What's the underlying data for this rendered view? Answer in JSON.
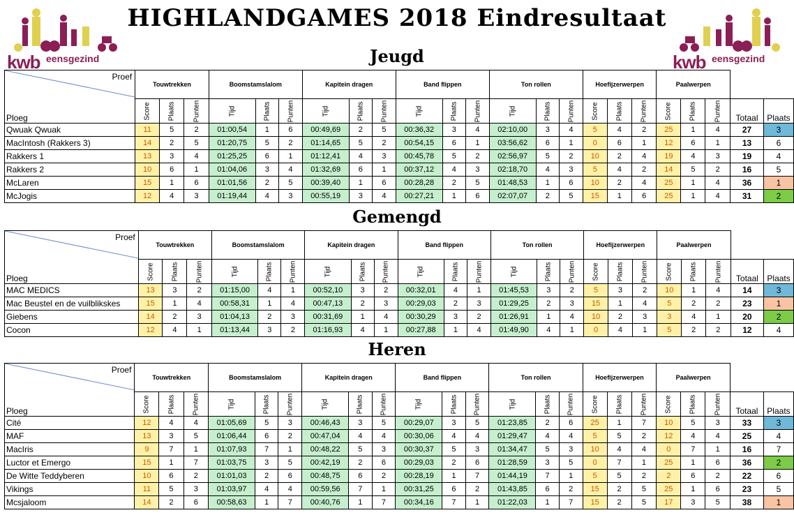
{
  "title": "HIGHLANDGAMES 2018 Eindresultaat",
  "logo": {
    "kwb": "kwb",
    "gezind": "eensgezind"
  },
  "headers": {
    "proef": "Proef",
    "ploeg": "Ploeg",
    "events": [
      "Touwtrekken",
      "Boomstamslalom",
      "Kapitein dragen",
      "Band flippen",
      "Ton rollen",
      "Hoefijzerwerpen",
      "Paalwerpen"
    ],
    "sub": {
      "score": "Score",
      "plaats": "Plaats",
      "punten": "Punten",
      "tijd": "Tijd"
    },
    "totaal": "Totaal",
    "plaats_final": "Plaats"
  },
  "colors": {
    "score_bg": "#fff2a8",
    "time_bg": "#c6efce",
    "place1": "#f8c4a4",
    "place2": "#7ccc48",
    "place3": "#6fb8d8"
  },
  "sections": [
    {
      "title": "Jeugd",
      "rows": [
        {
          "team": "Qwuak Qwuak",
          "cells": [
            "11",
            "5",
            "2",
            "01:00,54",
            "1",
            "6",
            "00:49,69",
            "2",
            "5",
            "00:36,32",
            "3",
            "4",
            "02:10,00",
            "3",
            "4",
            "5",
            "4",
            "2",
            "25",
            "1",
            "4"
          ],
          "total": "27",
          "place": "3"
        },
        {
          "team": "MacIntosh (Rakkers 3)",
          "cells": [
            "14",
            "2",
            "5",
            "01:20,75",
            "5",
            "2",
            "01:14,65",
            "5",
            "2",
            "00:54,15",
            "6",
            "1",
            "03:56,62",
            "6",
            "1",
            "0",
            "6",
            "1",
            "12",
            "6",
            "1"
          ],
          "total": "13",
          "place": "6"
        },
        {
          "team": "Rakkers 1",
          "cells": [
            "13",
            "3",
            "4",
            "01:25,25",
            "6",
            "1",
            "01:12,41",
            "4",
            "3",
            "00:45,78",
            "5",
            "2",
            "02:56,97",
            "5",
            "2",
            "10",
            "2",
            "4",
            "19",
            "4",
            "3"
          ],
          "total": "19",
          "place": "4"
        },
        {
          "team": "Rakkers 2",
          "cells": [
            "10",
            "6",
            "1",
            "01:04,06",
            "3",
            "4",
            "01:32,69",
            "6",
            "1",
            "00:37,12",
            "4",
            "3",
            "02:18,70",
            "4",
            "3",
            "5",
            "4",
            "2",
            "14",
            "5",
            "2"
          ],
          "total": "16",
          "place": "5"
        },
        {
          "team": "McLaren",
          "cells": [
            "15",
            "1",
            "6",
            "01:01,56",
            "2",
            "5",
            "00:39,40",
            "1",
            "6",
            "00:28,28",
            "2",
            "5",
            "01:48,53",
            "1",
            "6",
            "10",
            "2",
            "4",
            "25",
            "1",
            "4"
          ],
          "total": "36",
          "place": "1"
        },
        {
          "team": "McJogis",
          "cells": [
            "12",
            "4",
            "3",
            "01:19,44",
            "4",
            "3",
            "00:55,19",
            "3",
            "4",
            "00:27,21",
            "1",
            "6",
            "02:07,07",
            "2",
            "5",
            "15",
            "1",
            "6",
            "25",
            "1",
            "4"
          ],
          "total": "31",
          "place": "2"
        }
      ]
    },
    {
      "title": "Gemengd",
      "rows": [
        {
          "team": "MAC MEDICS",
          "cells": [
            "13",
            "3",
            "2",
            "01:15,00",
            "4",
            "1",
            "00:52,10",
            "3",
            "2",
            "00:32,01",
            "4",
            "1",
            "01:45,53",
            "3",
            "2",
            "5",
            "3",
            "2",
            "10",
            "1",
            "4"
          ],
          "total": "14",
          "place": "3"
        },
        {
          "team": "Mac Beustel en de vuilblikskes",
          "cells": [
            "15",
            "1",
            "4",
            "00:58,31",
            "1",
            "4",
            "00:47,13",
            "2",
            "3",
            "00:29,03",
            "2",
            "3",
            "01:29,25",
            "2",
            "3",
            "15",
            "1",
            "4",
            "5",
            "2",
            "2"
          ],
          "total": "23",
          "place": "1"
        },
        {
          "team": "Giebens",
          "cells": [
            "14",
            "2",
            "3",
            "01:04,13",
            "2",
            "3",
            "00:31,69",
            "1",
            "4",
            "00:30,29",
            "3",
            "2",
            "01:26,91",
            "1",
            "4",
            "10",
            "2",
            "3",
            "3",
            "4",
            "1"
          ],
          "total": "20",
          "place": "2"
        },
        {
          "team": "Cocon",
          "cells": [
            "12",
            "4",
            "1",
            "01:13,44",
            "3",
            "2",
            "01:16,93",
            "4",
            "1",
            "00:27,88",
            "1",
            "4",
            "01:49,90",
            "4",
            "1",
            "0",
            "4",
            "1",
            "5",
            "2",
            "2"
          ],
          "total": "12",
          "place": "4"
        }
      ]
    },
    {
      "title": "Heren",
      "rows": [
        {
          "team": "Cité",
          "cells": [
            "12",
            "4",
            "4",
            "01:05,69",
            "5",
            "3",
            "00:46,43",
            "3",
            "5",
            "00:29,07",
            "3",
            "5",
            "01:23,85",
            "2",
            "6",
            "25",
            "1",
            "7",
            "10",
            "5",
            "3"
          ],
          "total": "33",
          "place": "3"
        },
        {
          "team": "MAF",
          "cells": [
            "13",
            "3",
            "5",
            "01:06,44",
            "6",
            "2",
            "00:47,04",
            "4",
            "4",
            "00:30,06",
            "4",
            "4",
            "01:29,47",
            "4",
            "4",
            "5",
            "5",
            "2",
            "12",
            "4",
            "4"
          ],
          "total": "25",
          "place": "4"
        },
        {
          "team": "MacIris",
          "cells": [
            "9",
            "7",
            "1",
            "01:07,93",
            "7",
            "1",
            "00:48,22",
            "5",
            "3",
            "00:30,37",
            "5",
            "3",
            "01:34,47",
            "5",
            "3",
            "10",
            "4",
            "4",
            "0",
            "7",
            "1"
          ],
          "total": "16",
          "place": "7"
        },
        {
          "team": "Luctor et Emergo",
          "cells": [
            "15",
            "1",
            "7",
            "01:03,75",
            "3",
            "5",
            "00:42,19",
            "2",
            "6",
            "00:29,03",
            "2",
            "6",
            "01:28,59",
            "3",
            "5",
            "0",
            "7",
            "1",
            "25",
            "1",
            "6"
          ],
          "total": "36",
          "place": "2"
        },
        {
          "team": "De Witte Teddyberen",
          "cells": [
            "10",
            "6",
            "2",
            "01:01,03",
            "2",
            "6",
            "00:48,75",
            "6",
            "2",
            "00:28,19",
            "1",
            "7",
            "01:44,19",
            "7",
            "1",
            "5",
            "5",
            "2",
            "2",
            "6",
            "2"
          ],
          "total": "22",
          "place": "6"
        },
        {
          "team": "Vikings",
          "cells": [
            "11",
            "5",
            "3",
            "01:03,97",
            "4",
            "4",
            "00:59,56",
            "7",
            "1",
            "00:31,25",
            "6",
            "2",
            "01:43,85",
            "6",
            "2",
            "15",
            "2",
            "5",
            "25",
            "1",
            "6"
          ],
          "total": "23",
          "place": "5"
        },
        {
          "team": "Mcsjaloom",
          "cells": [
            "14",
            "2",
            "6",
            "00:58,63",
            "1",
            "7",
            "00:40,76",
            "1",
            "7",
            "00:34,16",
            "7",
            "1",
            "01:22,03",
            "1",
            "7",
            "15",
            "2",
            "5",
            "17",
            "3",
            "5"
          ],
          "total": "38",
          "place": "1"
        }
      ]
    }
  ]
}
